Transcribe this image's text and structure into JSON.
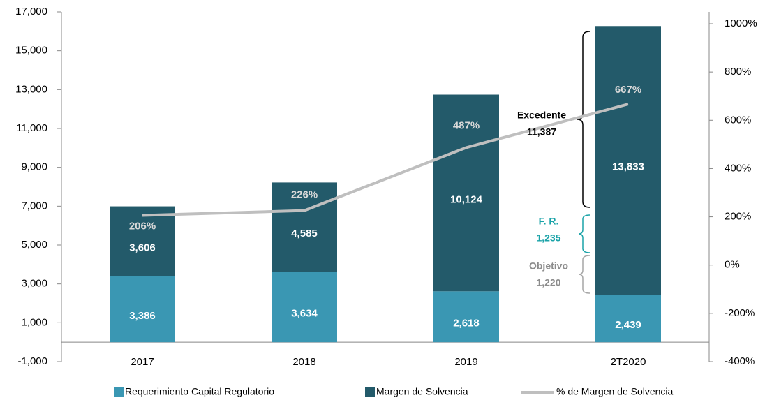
{
  "chart_data": {
    "type": "bar",
    "stacked": true,
    "categories": [
      "2017",
      "2018",
      "2019",
      "2T2020"
    ],
    "series": [
      {
        "name": "Requerimiento Capital Regulatorio",
        "color": "#3a97b3",
        "values": [
          3386,
          3634,
          2618,
          2439
        ],
        "value_labels": [
          "3,386",
          "3,634",
          "2,618",
          "2,439"
        ]
      },
      {
        "name": "Margen de Solvencia",
        "color": "#235a6a",
        "values": [
          3606,
          4585,
          10124,
          13833
        ],
        "value_labels": [
          "3,606",
          "4,585",
          "10,124",
          "13,833"
        ]
      },
      {
        "name": "% de Margen de Solvencia",
        "type": "line",
        "axis": "y2",
        "color": "#bfbfbf",
        "values": [
          206,
          226,
          487,
          667
        ],
        "value_labels": [
          "206%",
          "226%",
          "487%",
          "667%"
        ]
      }
    ],
    "ylim": [
      -1000,
      17000
    ],
    "yticks": [
      {
        "value": -1000,
        "label": "-1,000"
      },
      {
        "value": 1000,
        "label": "1,000"
      },
      {
        "value": 3000,
        "label": "3,000"
      },
      {
        "value": 5000,
        "label": "5,000"
      },
      {
        "value": 7000,
        "label": "7,000"
      },
      {
        "value": 9000,
        "label": "9,000"
      },
      {
        "value": 11000,
        "label": "11,000"
      },
      {
        "value": 13000,
        "label": "13,000"
      },
      {
        "value": 15000,
        "label": "15,000"
      },
      {
        "value": 17000,
        "label": "17,000"
      }
    ],
    "y2lim": [
      -400,
      1000
    ],
    "y2ticks": [
      {
        "value": -400,
        "label": "-400%"
      },
      {
        "value": -200,
        "label": "-200%"
      },
      {
        "value": 0,
        "label": "0%"
      },
      {
        "value": 200,
        "label": "200%"
      },
      {
        "value": 400,
        "label": "400%"
      },
      {
        "value": 600,
        "label": "600%"
      },
      {
        "value": 800,
        "label": "800%"
      },
      {
        "value": 1000,
        "label": "1000%"
      }
    ],
    "annotations": [
      {
        "title": "Excedente",
        "text": "11,387",
        "color": "#000000"
      },
      {
        "title": "F. R.",
        "text": "1,235",
        "color": "#1aa3a8"
      },
      {
        "title": "Objetivo",
        "text": "1,220",
        "color": "#8c8c8c"
      }
    ]
  }
}
